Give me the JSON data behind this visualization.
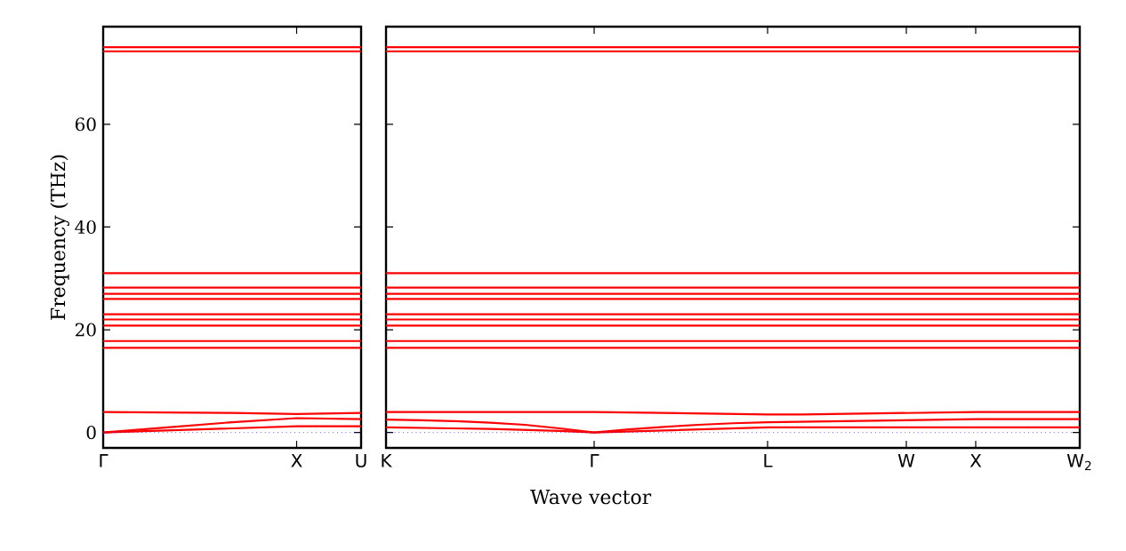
{
  "chart_data": [
    {
      "type": "line",
      "ylabel": "Frequency (THz)",
      "categories": [
        "Γ",
        null,
        null,
        "X",
        "U"
      ],
      "ylim": [
        -3,
        79
      ],
      "yticks": [
        0,
        20,
        40,
        60
      ],
      "marker": "none",
      "line_style": "solid",
      "ref_lines": [
        {
          "axis": "y",
          "value": 0,
          "color": "#0000ff",
          "line_style": "dotted"
        }
      ],
      "series": [
        {
          "color": "#ff0000",
          "values": [
            75,
            75,
            75,
            75,
            75
          ]
        },
        {
          "color": "#ff0000",
          "values": [
            74.2,
            74.2,
            74.2,
            74.2,
            74.2
          ]
        },
        {
          "color": "#ff0000",
          "values": [
            31,
            31,
            31,
            31,
            31
          ]
        },
        {
          "color": "#ff0000",
          "values": [
            28.2,
            28.2,
            28.2,
            28.2,
            28.2
          ]
        },
        {
          "color": "#ff0000",
          "values": [
            27,
            27,
            27,
            27,
            27
          ]
        },
        {
          "color": "#ff0000",
          "values": [
            26,
            26,
            26,
            26,
            26
          ]
        },
        {
          "color": "#ff0000",
          "values": [
            23,
            23,
            23,
            23,
            23
          ]
        },
        {
          "color": "#ff0000",
          "values": [
            22,
            22,
            22,
            22,
            22
          ]
        },
        {
          "color": "#ff0000",
          "values": [
            20.8,
            20.8,
            20.8,
            20.8,
            20.8
          ]
        },
        {
          "color": "#ff0000",
          "values": [
            17.8,
            17.8,
            17.8,
            17.8,
            17.8
          ]
        },
        {
          "color": "#ff0000",
          "values": [
            16.5,
            16.5,
            16.5,
            16.5,
            16.5
          ]
        },
        {
          "color": "#ff0000",
          "values": [
            4,
            3.9,
            3.8,
            3.6,
            3.8
          ]
        },
        {
          "color": "#ff0000",
          "values": [
            0,
            1,
            2,
            2.8,
            2.6
          ]
        },
        {
          "color": "#ff0000",
          "values": [
            0,
            0.4,
            0.8,
            1.2,
            1.2
          ]
        }
      ]
    },
    {
      "type": "line",
      "xlabel": "Wave vector",
      "categories": [
        "K",
        null,
        null,
        null,
        null,
        null,
        "Γ",
        null,
        null,
        null,
        null,
        "L",
        null,
        null,
        null,
        "W",
        null,
        "X",
        null,
        null,
        "W$_{2}$"
      ],
      "ylim": [
        -3,
        79
      ],
      "yticks": [
        0,
        20,
        40,
        60
      ],
      "tick_labels": "x",
      "marker": "none",
      "line_style": "solid",
      "ref_lines": [
        {
          "axis": "y",
          "value": 0,
          "color": "#0000ff",
          "line_style": "dotted"
        }
      ],
      "series": [
        {
          "color": "#ff0000",
          "values": [
            75,
            75,
            75,
            75,
            75,
            75,
            75,
            75,
            75,
            75,
            75,
            75,
            75,
            75,
            75,
            75,
            75,
            75,
            75,
            75,
            75
          ]
        },
        {
          "color": "#ff0000",
          "values": [
            74.2,
            74.2,
            74.2,
            74.2,
            74.2,
            74.2,
            74.2,
            74.2,
            74.2,
            74.2,
            74.2,
            74.2,
            74.2,
            74.2,
            74.2,
            74.2,
            74.2,
            74.2,
            74.2,
            74.2,
            74.2
          ]
        },
        {
          "color": "#ff0000",
          "values": [
            31,
            31,
            31,
            31,
            31,
            31,
            31,
            31,
            31,
            31,
            31,
            31,
            31,
            31,
            31,
            31,
            31,
            31,
            31,
            31,
            31
          ]
        },
        {
          "color": "#ff0000",
          "values": [
            28.2,
            28.2,
            28.2,
            28.2,
            28.2,
            28.2,
            28.2,
            28.2,
            28.2,
            28.2,
            28.2,
            28.2,
            28.2,
            28.2,
            28.2,
            28.2,
            28.2,
            28.2,
            28.2,
            28.2,
            28.2
          ]
        },
        {
          "color": "#ff0000",
          "values": [
            27,
            27,
            27,
            27,
            27,
            27,
            27,
            27,
            27,
            27,
            27,
            27,
            27,
            27,
            27,
            27,
            27,
            27,
            27,
            27,
            27
          ]
        },
        {
          "color": "#ff0000",
          "values": [
            26,
            26,
            26,
            26,
            26,
            26,
            26,
            26,
            26,
            26,
            26,
            26,
            26,
            26,
            26,
            26,
            26,
            26,
            26,
            26,
            26
          ]
        },
        {
          "color": "#ff0000",
          "values": [
            23,
            23,
            23,
            23,
            23,
            23,
            23,
            23,
            23,
            23,
            23,
            23,
            23,
            23,
            23,
            23,
            23,
            23,
            23,
            23,
            23
          ]
        },
        {
          "color": "#ff0000",
          "values": [
            22,
            22,
            22,
            22,
            22,
            22,
            22,
            22,
            22,
            22,
            22,
            22,
            22,
            22,
            22,
            22,
            22,
            22,
            22,
            22,
            22
          ]
        },
        {
          "color": "#ff0000",
          "values": [
            20.8,
            20.8,
            20.8,
            20.8,
            20.8,
            20.8,
            20.8,
            20.8,
            20.8,
            20.8,
            20.8,
            20.8,
            20.8,
            20.8,
            20.8,
            20.8,
            20.8,
            20.8,
            20.8,
            20.8,
            20.8
          ]
        },
        {
          "color": "#ff0000",
          "values": [
            17.8,
            17.8,
            17.8,
            17.8,
            17.8,
            17.8,
            17.8,
            17.8,
            17.8,
            17.8,
            17.8,
            17.8,
            17.8,
            17.8,
            17.8,
            17.8,
            17.8,
            17.8,
            17.8,
            17.8,
            17.8
          ]
        },
        {
          "color": "#ff0000",
          "values": [
            16.5,
            16.5,
            16.5,
            16.5,
            16.5,
            16.5,
            16.5,
            16.5,
            16.5,
            16.5,
            16.5,
            16.5,
            16.5,
            16.5,
            16.5,
            16.5,
            16.5,
            16.5,
            16.5,
            16.5,
            16.5
          ]
        },
        {
          "color": "#ff0000",
          "values": [
            4,
            4,
            4,
            4,
            4,
            4,
            4,
            3.9,
            3.8,
            3.7,
            3.6,
            3.5,
            3.5,
            3.6,
            3.7,
            3.8,
            3.9,
            4,
            4,
            4,
            4
          ]
        },
        {
          "color": "#ff0000",
          "values": [
            2.5,
            2.4,
            2.2,
            1.9,
            1.5,
            0.8,
            0,
            0.6,
            1.1,
            1.5,
            1.8,
            2,
            2.1,
            2.2,
            2.3,
            2.4,
            2.5,
            2.6,
            2.6,
            2.6,
            2.6
          ]
        },
        {
          "color": "#ff0000",
          "values": [
            1,
            0.9,
            0.8,
            0.7,
            0.5,
            0.3,
            0,
            0.2,
            0.4,
            0.6,
            0.8,
            1,
            1,
            1,
            1,
            1,
            1,
            1,
            1,
            1,
            1
          ]
        }
      ]
    }
  ]
}
